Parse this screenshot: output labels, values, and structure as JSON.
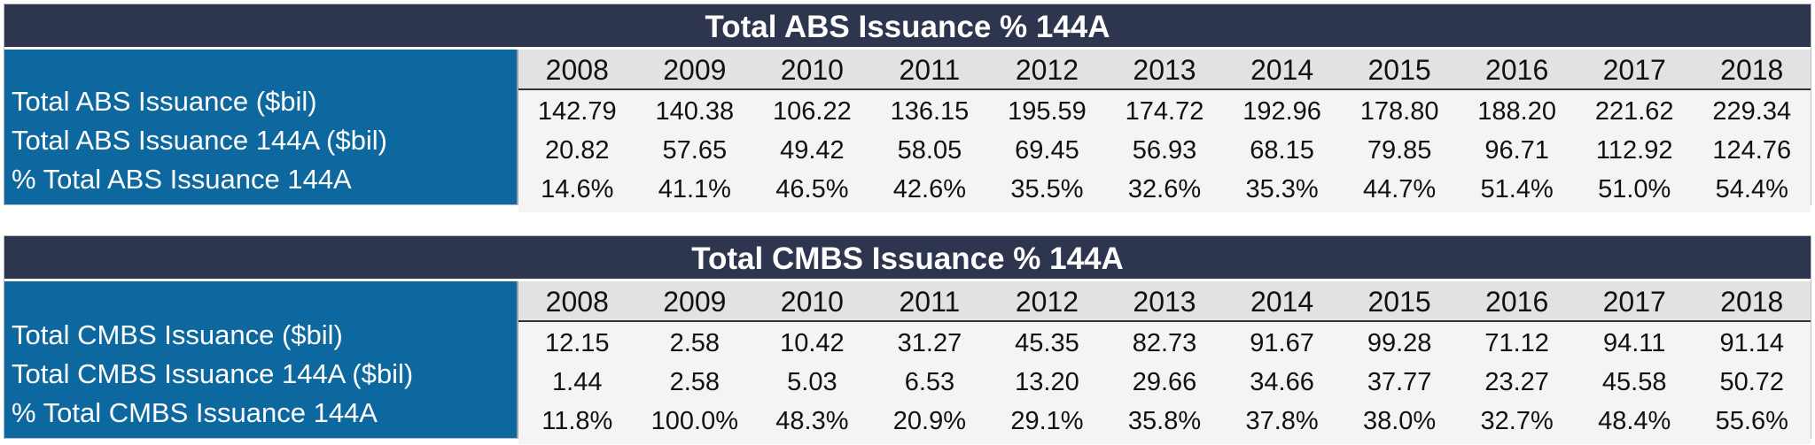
{
  "abs": {
    "title": "Total ABS Issuance % 144A",
    "years": [
      "2008",
      "2009",
      "2010",
      "2011",
      "2012",
      "2013",
      "2014",
      "2015",
      "2016",
      "2017",
      "2018"
    ],
    "rows": [
      {
        "label": "Total ABS Issuance ($bil)",
        "values": [
          "142.79",
          "140.38",
          "106.22",
          "136.15",
          "195.59",
          "174.72",
          "192.96",
          "178.80",
          "188.20",
          "221.62",
          "229.34"
        ]
      },
      {
        "label": "Total ABS Issuance 144A ($bil)",
        "values": [
          "20.82",
          "57.65",
          "49.42",
          "58.05",
          "69.45",
          "56.93",
          "68.15",
          "79.85",
          "96.71",
          "112.92",
          "124.76"
        ]
      },
      {
        "label": "% Total ABS Issuance 144A",
        "values": [
          "14.6%",
          "41.1%",
          "46.5%",
          "42.6%",
          "35.5%",
          "32.6%",
          "35.3%",
          "44.7%",
          "51.4%",
          "51.0%",
          "54.4%"
        ]
      }
    ]
  },
  "cmbs": {
    "title": "Total CMBS Issuance % 144A",
    "years": [
      "2008",
      "2009",
      "2010",
      "2011",
      "2012",
      "2013",
      "2014",
      "2015",
      "2016",
      "2017",
      "2018"
    ],
    "rows": [
      {
        "label": "Total CMBS Issuance ($bil)",
        "values": [
          "12.15",
          "2.58",
          "10.42",
          "31.27",
          "45.35",
          "82.73",
          "91.67",
          "99.28",
          "71.12",
          "94.11",
          "91.14"
        ]
      },
      {
        "label": "Total CMBS Issuance 144A ($bil)",
        "values": [
          "1.44",
          "2.58",
          "5.03",
          "6.53",
          "13.20",
          "29.66",
          "34.66",
          "37.77",
          "23.27",
          "45.58",
          "50.72"
        ]
      },
      {
        "label": "% Total CMBS Issuance 144A",
        "values": [
          "11.8%",
          "100.0%",
          "48.3%",
          "20.9%",
          "29.1%",
          "35.8%",
          "37.8%",
          "38.0%",
          "32.7%",
          "48.4%",
          "55.6%"
        ]
      }
    ]
  }
}
